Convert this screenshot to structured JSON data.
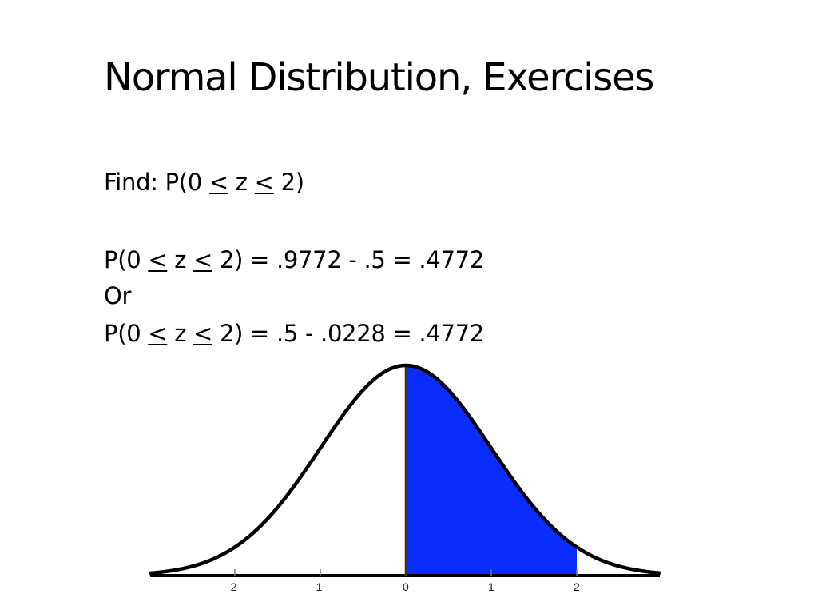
{
  "slide": {
    "title": "Normal Distribution, Exercises",
    "find": {
      "prefix": "Find: P(0 ",
      "lte1": "<",
      "mid": " z ",
      "lte2": "<",
      "suffix": " 2)"
    },
    "eq1": {
      "prefix": "P(0 ",
      "lte1": "<",
      "mid": " z ",
      "lte2": "<",
      "suffix": " 2) = .9772 - .5 = .4772"
    },
    "or": "Or",
    "eq2": {
      "prefix": "P(0 ",
      "lte1": "<",
      "mid": " z ",
      "lte2": "<",
      "suffix": " 2) = .5 - .0228 = .4772"
    }
  },
  "chart_data": {
    "type": "area",
    "distribution": "standard normal",
    "x_ticks": [
      "-2",
      "-1",
      "0",
      "1",
      "2"
    ],
    "shaded_range": [
      0,
      2
    ],
    "fill_color": "#0a2cff",
    "curve_color": "#000000"
  }
}
